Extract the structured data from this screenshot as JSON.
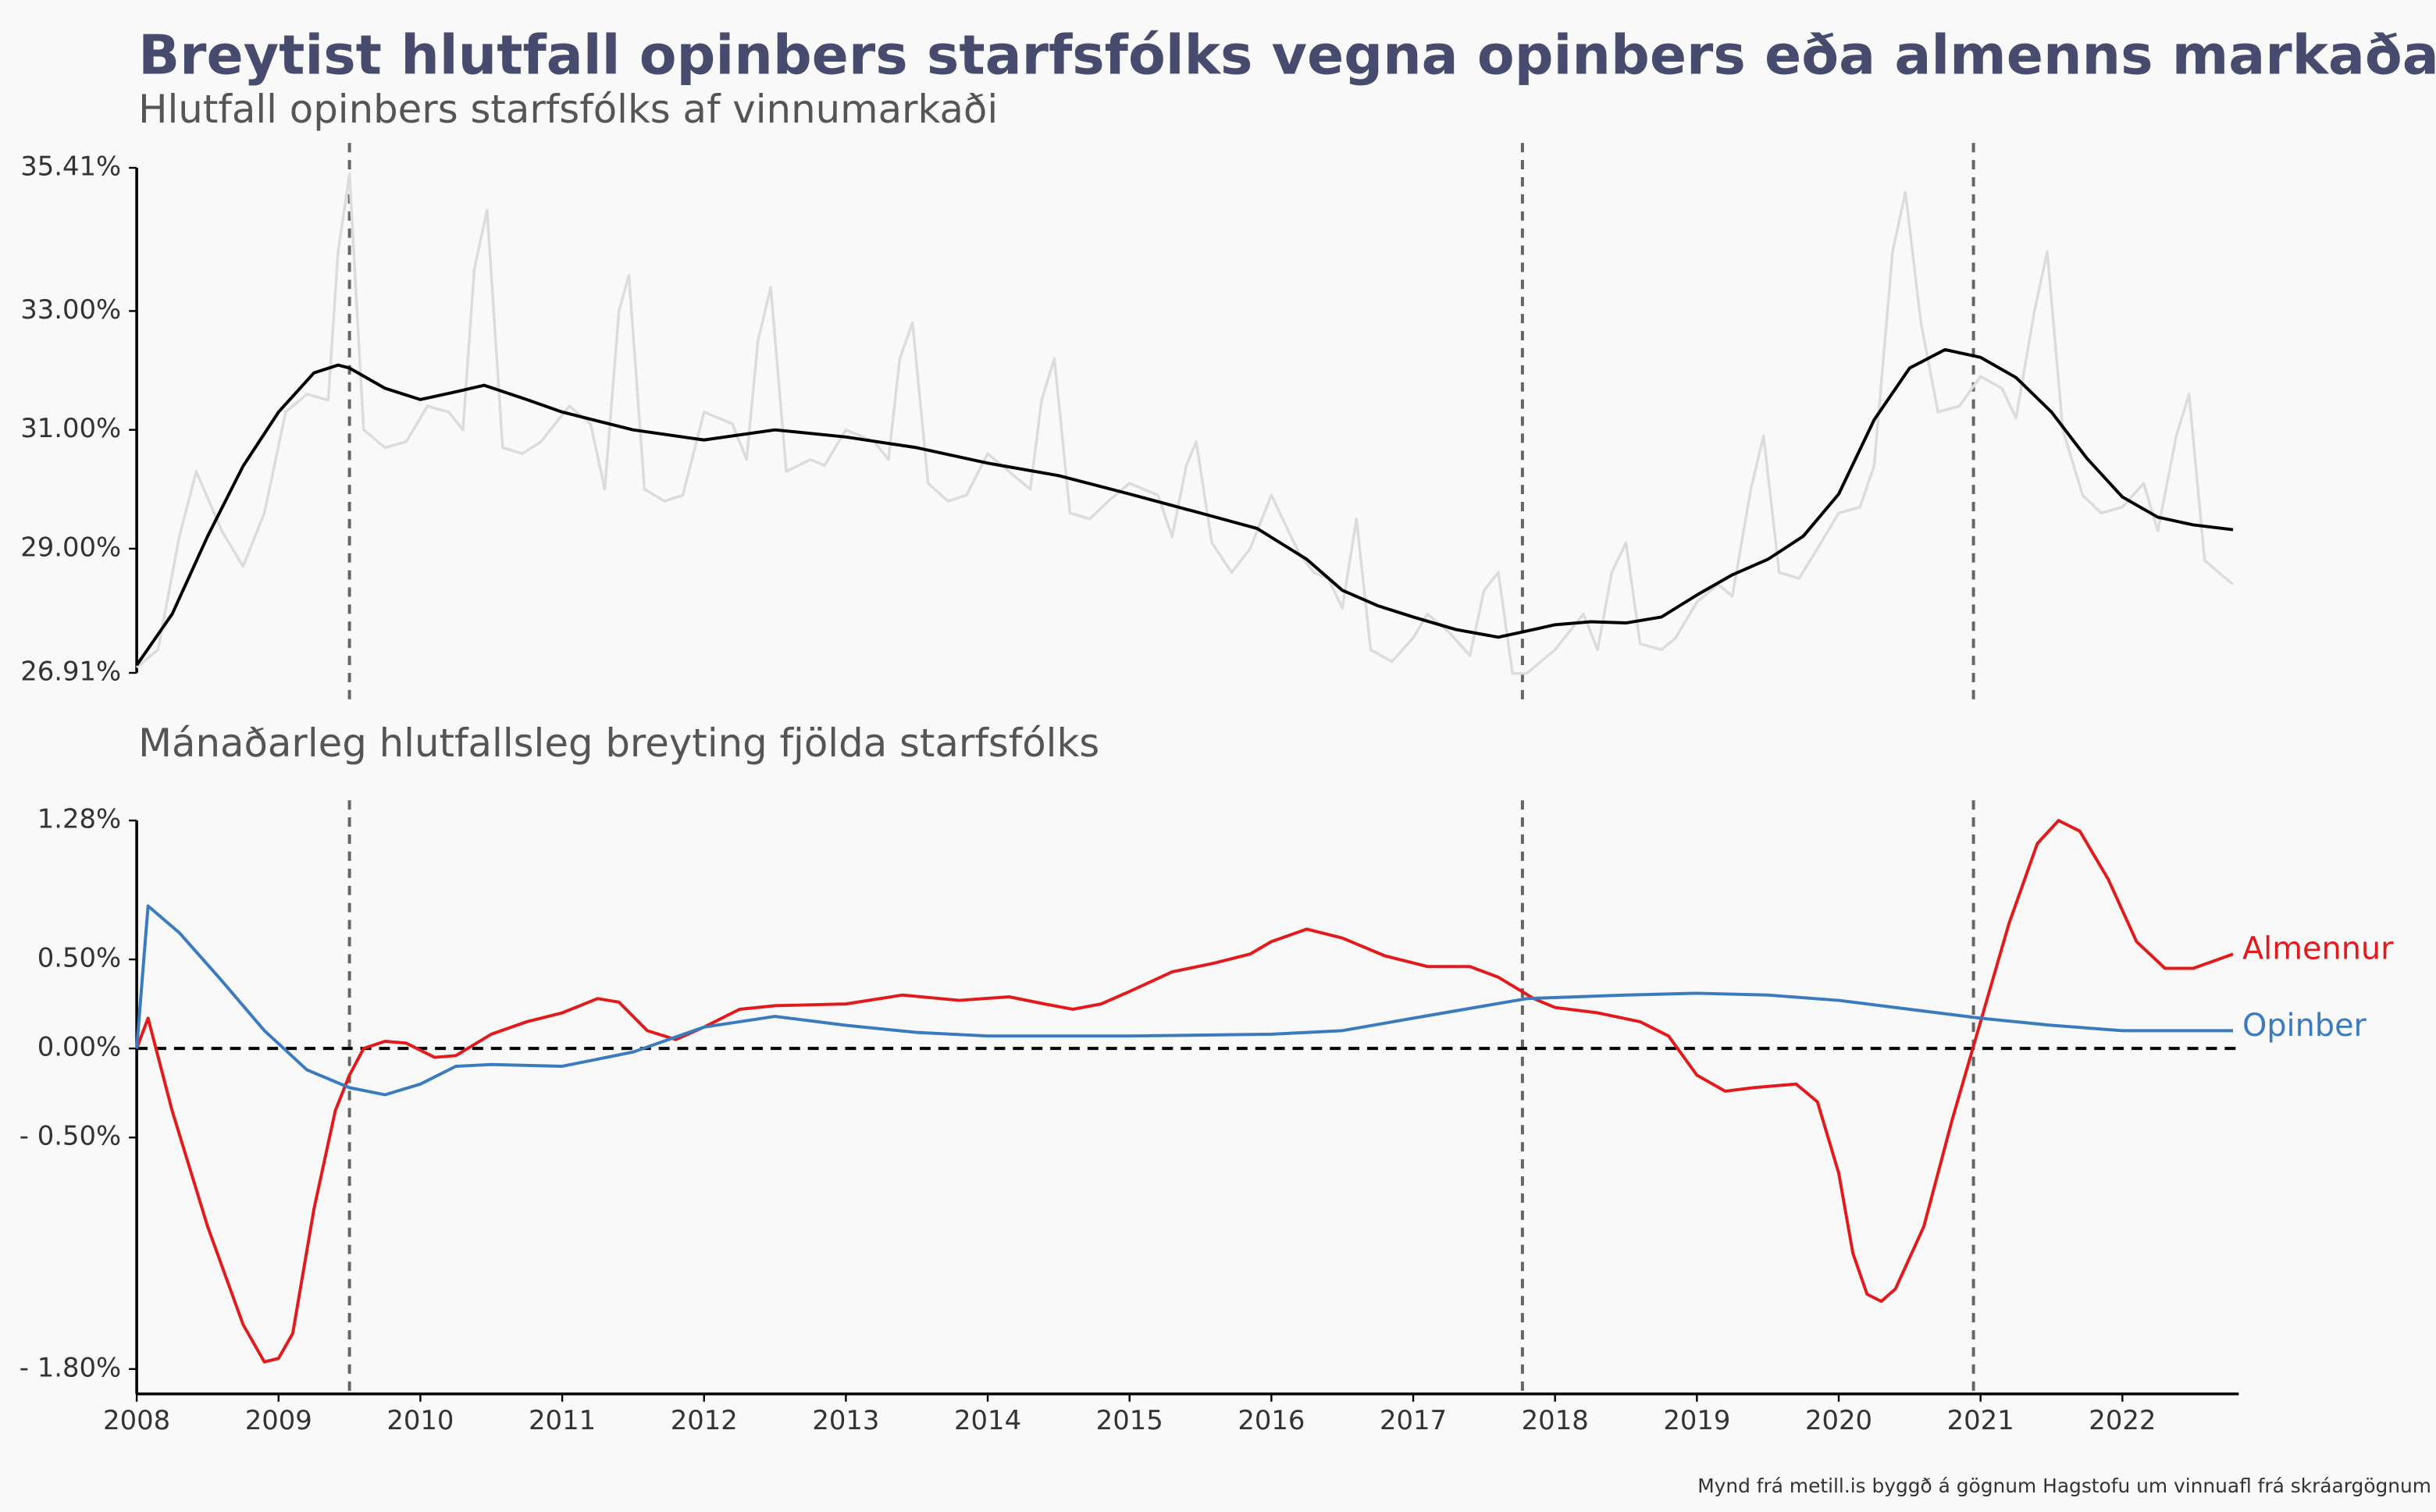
{
  "title": "Breytist hlutfall opinbers starfsfólks vegna opinbers eða almenns markaðar?",
  "caption": "Mynd frá metill.is byggð á gögnum Hagstofu um vinnuafl frá skráargögnum",
  "chart_data": [
    {
      "type": "line",
      "subtitle": "Hlutfall opinbers starfsfólks af vinnumarkaði",
      "xlim": [
        2008,
        2022.82
      ],
      "ylim": [
        26.91,
        35.41
      ],
      "yticks": [
        {
          "value": 26.91,
          "label": "26.91%"
        },
        {
          "value": 29,
          "label": "29.00%"
        },
        {
          "value": 31,
          "label": "31.00%"
        },
        {
          "value": 33,
          "label": "33.00%"
        },
        {
          "value": 35.41,
          "label": "35.41%"
        }
      ],
      "vlines": [
        2009.5,
        2017.77,
        2020.95
      ],
      "series": [
        {
          "color": "#dcdcdc",
          "x": [
            2008.0,
            2008.15,
            2008.3,
            2008.42,
            2008.6,
            2008.75,
            2008.9,
            2009.05,
            2009.2,
            2009.35,
            2009.42,
            2009.5,
            2009.6,
            2009.75,
            2009.9,
            2010.05,
            2010.2,
            2010.3,
            2010.38,
            2010.47,
            2010.58,
            2010.72,
            2010.85,
            2011.05,
            2011.2,
            2011.3,
            2011.4,
            2011.47,
            2011.58,
            2011.72,
            2011.85,
            2012.0,
            2012.2,
            2012.3,
            2012.38,
            2012.47,
            2012.58,
            2012.75,
            2012.85,
            2013.0,
            2013.2,
            2013.3,
            2013.38,
            2013.47,
            2013.58,
            2013.72,
            2013.85,
            2014.0,
            2014.2,
            2014.3,
            2014.38,
            2014.47,
            2014.58,
            2014.72,
            2014.85,
            2015.0,
            2015.2,
            2015.3,
            2015.4,
            2015.47,
            2015.58,
            2015.72,
            2015.85,
            2016.0,
            2016.2,
            2016.3,
            2016.4,
            2016.5,
            2016.6,
            2016.7,
            2016.85,
            2017.0,
            2017.1,
            2017.25,
            2017.4,
            2017.5,
            2017.6,
            2017.7,
            2017.8,
            2018.0,
            2018.2,
            2018.3,
            2018.4,
            2018.5,
            2018.6,
            2018.75,
            2018.85,
            2019.0,
            2019.15,
            2019.25,
            2019.38,
            2019.47,
            2019.58,
            2019.72,
            2019.85,
            2020.0,
            2020.15,
            2020.25,
            2020.38,
            2020.47,
            2020.58,
            2020.7,
            2020.85,
            2021.0,
            2021.15,
            2021.25,
            2021.38,
            2021.47,
            2021.58,
            2021.72,
            2021.85,
            2022.0,
            2022.15,
            2022.25,
            2022.38,
            2022.47,
            2022.58,
            2022.78
          ],
          "values": [
            27.0,
            27.3,
            29.2,
            30.3,
            29.3,
            28.7,
            29.6,
            31.3,
            31.6,
            31.5,
            34.0,
            35.3,
            31.0,
            30.7,
            30.8,
            31.4,
            31.3,
            31.0,
            33.7,
            34.7,
            30.7,
            30.6,
            30.8,
            31.4,
            31.1,
            30.0,
            33.0,
            33.6,
            30.0,
            29.8,
            29.9,
            31.3,
            31.1,
            30.5,
            32.5,
            33.4,
            30.3,
            30.5,
            30.4,
            31.0,
            30.8,
            30.5,
            32.2,
            32.8,
            30.1,
            29.8,
            29.9,
            30.6,
            30.2,
            30.0,
            31.5,
            32.2,
            29.6,
            29.5,
            29.8,
            30.1,
            29.9,
            29.2,
            30.4,
            30.8,
            29.1,
            28.6,
            29.0,
            29.9,
            28.9,
            28.6,
            28.5,
            28.0,
            29.5,
            27.3,
            27.1,
            27.5,
            27.9,
            27.6,
            27.2,
            28.3,
            28.6,
            26.9,
            26.9,
            27.3,
            27.9,
            27.3,
            28.6,
            29.1,
            27.4,
            27.3,
            27.5,
            28.1,
            28.4,
            28.2,
            30.0,
            30.9,
            28.6,
            28.5,
            29.0,
            29.6,
            29.7,
            30.4,
            34.0,
            35.0,
            32.8,
            31.3,
            31.4,
            31.9,
            31.7,
            31.2,
            33.0,
            34.0,
            31.0,
            29.9,
            29.6,
            29.7,
            30.1,
            29.3,
            30.9,
            31.6,
            28.8,
            28.4
          ]
        },
        {
          "color": "#000000",
          "x": [
            2008.0,
            2008.25,
            2008.5,
            2008.75,
            2009.0,
            2009.25,
            2009.42,
            2009.5,
            2009.75,
            2010.0,
            2010.25,
            2010.45,
            2010.75,
            2011.0,
            2011.5,
            2012.0,
            2012.5,
            2013.0,
            2013.5,
            2014.0,
            2014.5,
            2015.0,
            2015.5,
            2015.9,
            2016.25,
            2016.5,
            2016.75,
            2017.0,
            2017.3,
            2017.6,
            2017.85,
            2018.0,
            2018.25,
            2018.5,
            2018.75,
            2019.0,
            2019.25,
            2019.5,
            2019.75,
            2020.0,
            2020.25,
            2020.5,
            2020.75,
            2021.0,
            2021.25,
            2021.5,
            2021.75,
            2022.0,
            2022.25,
            2022.5,
            2022.78
          ],
          "values": [
            27.04,
            27.9,
            29.21,
            30.39,
            31.3,
            31.96,
            32.09,
            32.04,
            31.7,
            31.51,
            31.64,
            31.75,
            31.51,
            31.3,
            31.0,
            30.83,
            31.0,
            30.88,
            30.7,
            30.44,
            30.23,
            29.92,
            29.6,
            29.34,
            28.82,
            28.3,
            28.04,
            27.85,
            27.64,
            27.51,
            27.64,
            27.72,
            27.77,
            27.75,
            27.85,
            28.22,
            28.56,
            28.82,
            29.21,
            29.92,
            31.17,
            32.04,
            32.35,
            32.22,
            31.88,
            31.3,
            30.52,
            29.87,
            29.53,
            29.4,
            29.32
          ]
        }
      ]
    },
    {
      "type": "line",
      "subtitle": "Mánaðarleg hlutfallsleg breyting fjölda starfsfólks",
      "xlim": [
        2008,
        2022.82
      ],
      "xticks": [
        2008,
        2009,
        2010,
        2011,
        2012,
        2013,
        2014,
        2015,
        2016,
        2017,
        2018,
        2019,
        2020,
        2021,
        2022
      ],
      "ylim": [
        -1.8,
        1.28
      ],
      "yticks": [
        {
          "value": -1.8,
          "label": "- 1.80%"
        },
        {
          "value": -0.5,
          "label": "- 0.50%"
        },
        {
          "value": 0,
          "label": "0.00%"
        },
        {
          "value": 0.5,
          "label": "0.50%"
        },
        {
          "value": 1.28,
          "label": "1.28%"
        }
      ],
      "vlines": [
        2009.5,
        2017.77,
        2020.95
      ],
      "hline": 0,
      "series": [
        {
          "name": "Almennur",
          "color": "#e31a1c",
          "x": [
            2008.0,
            2008.08,
            2008.25,
            2008.5,
            2008.75,
            2008.9,
            2009.0,
            2009.1,
            2009.25,
            2009.4,
            2009.5,
            2009.6,
            2009.75,
            2009.9,
            2010.1,
            2010.25,
            2010.5,
            2010.75,
            2011.0,
            2011.25,
            2011.4,
            2011.6,
            2011.8,
            2012.0,
            2012.25,
            2012.5,
            2013.0,
            2013.4,
            2013.8,
            2014.15,
            2014.4,
            2014.6,
            2014.8,
            2015.0,
            2015.3,
            2015.6,
            2015.85,
            2016.0,
            2016.25,
            2016.5,
            2016.8,
            2017.1,
            2017.4,
            2017.6,
            2017.85,
            2018.0,
            2018.3,
            2018.6,
            2018.8,
            2019.0,
            2019.2,
            2019.4,
            2019.7,
            2019.85,
            2020.0,
            2020.1,
            2020.2,
            2020.3,
            2020.4,
            2020.6,
            2020.8,
            2021.0,
            2021.2,
            2021.4,
            2021.55,
            2021.7,
            2021.9,
            2022.1,
            2022.3,
            2022.5,
            2022.78
          ],
          "values": [
            0.0,
            0.17,
            -0.35,
            -1.0,
            -1.55,
            -1.76,
            -1.74,
            -1.6,
            -0.9,
            -0.35,
            -0.15,
            0.0,
            0.04,
            0.03,
            -0.05,
            -0.04,
            0.08,
            0.15,
            0.2,
            0.28,
            0.26,
            0.1,
            0.05,
            0.12,
            0.22,
            0.24,
            0.25,
            0.3,
            0.27,
            0.29,
            0.25,
            0.22,
            0.25,
            0.32,
            0.43,
            0.48,
            0.53,
            0.6,
            0.67,
            0.62,
            0.52,
            0.46,
            0.46,
            0.4,
            0.28,
            0.23,
            0.2,
            0.15,
            0.07,
            -0.15,
            -0.24,
            -0.22,
            -0.2,
            -0.3,
            -0.7,
            -1.15,
            -1.38,
            -1.42,
            -1.35,
            -1.0,
            -0.4,
            0.15,
            0.7,
            1.15,
            1.28,
            1.22,
            0.95,
            0.6,
            0.45,
            0.45,
            0.53
          ]
        },
        {
          "name": "Opinber",
          "color": "#3a7bbf",
          "x": [
            2008.0,
            2008.08,
            2008.3,
            2008.6,
            2008.9,
            2009.2,
            2009.5,
            2009.75,
            2010.0,
            2010.25,
            2010.5,
            2011.0,
            2011.5,
            2012.0,
            2012.5,
            2013.0,
            2013.5,
            2014.0,
            2015.0,
            2016.0,
            2016.5,
            2017.0,
            2017.8,
            2018.5,
            2019.0,
            2019.5,
            2020.0,
            2020.5,
            2021.0,
            2021.5,
            2022.0,
            2022.78
          ],
          "values": [
            0.0,
            0.8,
            0.65,
            0.38,
            0.1,
            -0.12,
            -0.22,
            -0.26,
            -0.2,
            -0.1,
            -0.09,
            -0.1,
            -0.02,
            0.12,
            0.18,
            0.13,
            0.09,
            0.07,
            0.07,
            0.08,
            0.1,
            0.17,
            0.28,
            0.3,
            0.31,
            0.3,
            0.27,
            0.22,
            0.17,
            0.13,
            0.1,
            0.1
          ]
        }
      ]
    }
  ]
}
